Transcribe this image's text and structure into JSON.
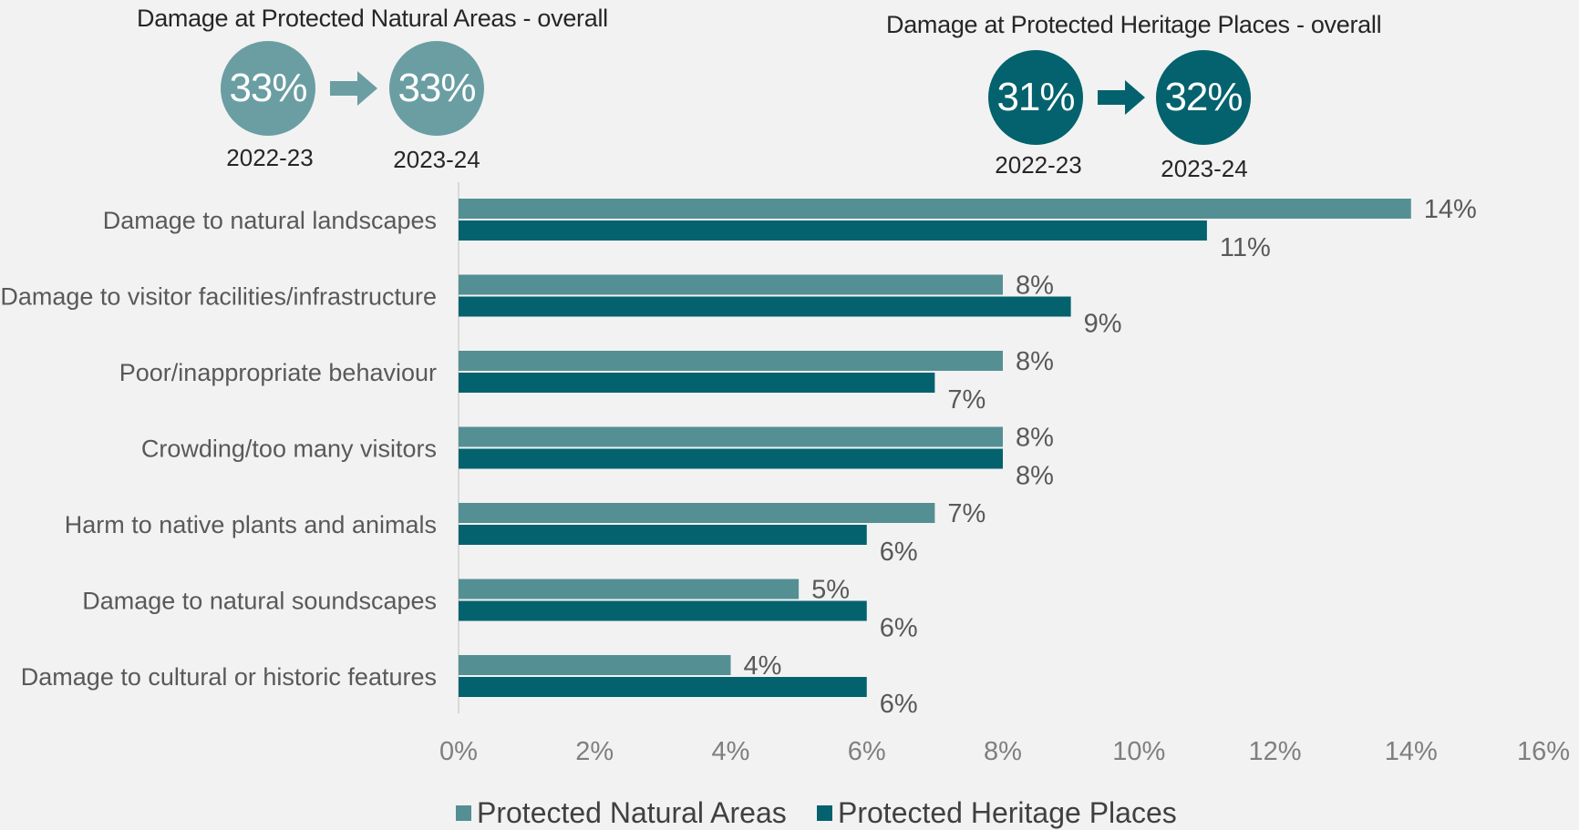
{
  "kpis": [
    {
      "title": "Damage at Protected Natural Areas - overall",
      "color": "#6a9ea2",
      "from": {
        "value": "33%",
        "year": "2022-23"
      },
      "to": {
        "value": "33%",
        "year": "2023-24"
      }
    },
    {
      "title": "Damage at Protected Heritage Places - overall",
      "color": "#03626d",
      "from": {
        "value": "31%",
        "year": "2022-23"
      },
      "to": {
        "value": "32%",
        "year": "2023-24"
      }
    }
  ],
  "chart_data": {
    "type": "bar",
    "orientation": "horizontal",
    "categories": [
      "Damage to natural landscapes",
      "Damage to visitor facilities/infrastructure",
      "Poor/inappropriate behaviour",
      "Crowding/too many visitors",
      "Harm to native plants and animals",
      "Damage to natural soundscapes",
      "Damage to cultural or historic features"
    ],
    "series": [
      {
        "name": "Protected Natural Areas",
        "color": "#548f94",
        "values": [
          14,
          8,
          8,
          8,
          7,
          5,
          4
        ]
      },
      {
        "name": "Protected Heritage Places",
        "color": "#03626d",
        "values": [
          11,
          9,
          7,
          8,
          6,
          6,
          6
        ]
      }
    ],
    "xlim": [
      0,
      16
    ],
    "xticks": [
      "0%",
      "2%",
      "4%",
      "6%",
      "8%",
      "10%",
      "12%",
      "14%",
      "16%"
    ],
    "value_suffix": "%",
    "grid": false,
    "legend_position": "bottom"
  }
}
